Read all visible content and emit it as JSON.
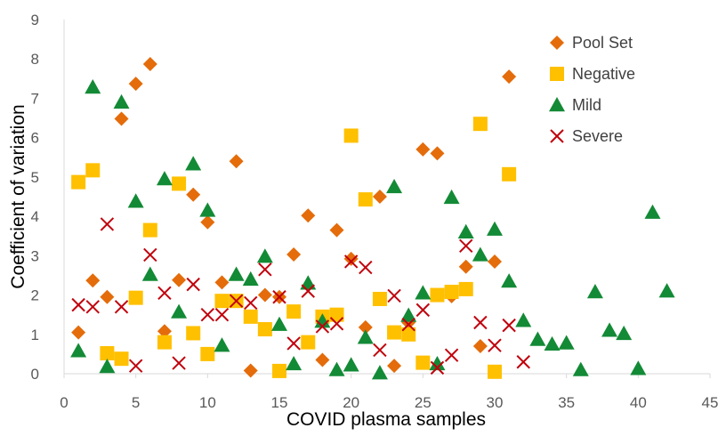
{
  "chart_data": {
    "type": "scatter",
    "xlabel": "COVID plasma samples",
    "ylabel": "Coefficient of variation",
    "xlim": [
      0,
      45
    ],
    "ylim": [
      0,
      9
    ],
    "x_ticks": [
      0,
      5,
      10,
      15,
      20,
      25,
      30,
      35,
      40,
      45
    ],
    "y_ticks": [
      0,
      1,
      2,
      3,
      4,
      5,
      6,
      7,
      8,
      9
    ],
    "grid": false,
    "legend_position": "top-right",
    "series": [
      {
        "name": "Pool Set",
        "marker": "diamond",
        "color": "#E46C0A",
        "points": [
          [
            1,
            1.05
          ],
          [
            2,
            2.37
          ],
          [
            3,
            1.95
          ],
          [
            4,
            6.48
          ],
          [
            5,
            7.37
          ],
          [
            6,
            7.87
          ],
          [
            7,
            1.08
          ],
          [
            8,
            2.38
          ],
          [
            9,
            4.55
          ],
          [
            10,
            3.85
          ],
          [
            11,
            2.32
          ],
          [
            12,
            5.4
          ],
          [
            13,
            0.08
          ],
          [
            14,
            2.0
          ],
          [
            15,
            1.95
          ],
          [
            16,
            3.03
          ],
          [
            17,
            4.02
          ],
          [
            18,
            0.35
          ],
          [
            19,
            3.65
          ],
          [
            20,
            2.92
          ],
          [
            21,
            1.18
          ],
          [
            22,
            4.5
          ],
          [
            23,
            0.2
          ],
          [
            24,
            1.3
          ],
          [
            25,
            5.7
          ],
          [
            26,
            5.6
          ],
          [
            27,
            1.97
          ],
          [
            28,
            2.72
          ],
          [
            29,
            0.7
          ],
          [
            30,
            2.85
          ],
          [
            31,
            7.55
          ]
        ]
      },
      {
        "name": "Negative",
        "marker": "square",
        "color": "#FFC000",
        "points": [
          [
            1,
            4.87
          ],
          [
            2,
            5.17
          ],
          [
            3,
            0.52
          ],
          [
            4,
            0.38
          ],
          [
            5,
            1.93
          ],
          [
            6,
            3.65
          ],
          [
            7,
            0.8
          ],
          [
            8,
            4.83
          ],
          [
            9,
            1.03
          ],
          [
            10,
            0.5
          ],
          [
            11,
            1.85
          ],
          [
            12,
            1.85
          ],
          [
            13,
            1.45
          ],
          [
            14,
            1.13
          ],
          [
            15,
            0.07
          ],
          [
            16,
            1.58
          ],
          [
            17,
            0.8
          ],
          [
            18,
            1.45
          ],
          [
            19,
            1.5
          ],
          [
            20,
            6.05
          ],
          [
            21,
            4.43
          ],
          [
            22,
            1.9
          ],
          [
            23,
            1.05
          ],
          [
            24,
            1.0
          ],
          [
            25,
            0.28
          ],
          [
            26,
            2.0
          ],
          [
            27,
            2.08
          ],
          [
            28,
            2.15
          ],
          [
            29,
            6.35
          ],
          [
            30,
            0.05
          ],
          [
            31,
            5.07
          ]
        ]
      },
      {
        "name": "Mild",
        "marker": "triangle",
        "color": "#138A36",
        "points": [
          [
            1,
            0.58
          ],
          [
            2,
            7.28
          ],
          [
            3,
            0.18
          ],
          [
            4,
            6.9
          ],
          [
            5,
            4.38
          ],
          [
            6,
            2.52
          ],
          [
            7,
            4.95
          ],
          [
            8,
            1.57
          ],
          [
            9,
            5.33
          ],
          [
            10,
            4.15
          ],
          [
            11,
            0.72
          ],
          [
            12,
            2.52
          ],
          [
            13,
            2.4
          ],
          [
            14,
            2.98
          ],
          [
            15,
            1.25
          ],
          [
            16,
            0.25
          ],
          [
            17,
            2.3
          ],
          [
            18,
            1.33
          ],
          [
            19,
            0.1
          ],
          [
            20,
            0.22
          ],
          [
            21,
            0.92
          ],
          [
            22,
            0.02
          ],
          [
            23,
            4.75
          ],
          [
            24,
            1.48
          ],
          [
            25,
            2.05
          ],
          [
            26,
            0.25
          ],
          [
            27,
            4.48
          ],
          [
            28,
            3.6
          ],
          [
            29,
            3.02
          ],
          [
            30,
            3.67
          ],
          [
            31,
            2.35
          ],
          [
            32,
            1.35
          ],
          [
            33,
            0.87
          ],
          [
            34,
            0.75
          ],
          [
            35,
            0.78
          ],
          [
            36,
            0.1
          ],
          [
            37,
            2.08
          ],
          [
            38,
            1.1
          ],
          [
            39,
            1.02
          ],
          [
            40,
            0.13
          ],
          [
            41,
            4.1
          ],
          [
            42,
            2.1
          ]
        ]
      },
      {
        "name": "Severe",
        "marker": "x",
        "color": "#C0000C",
        "points": [
          [
            1,
            1.75
          ],
          [
            2,
            1.7
          ],
          [
            3,
            3.8
          ],
          [
            4,
            1.7
          ],
          [
            5,
            0.2
          ],
          [
            6,
            3.02
          ],
          [
            7,
            2.05
          ],
          [
            8,
            0.27
          ],
          [
            9,
            2.27
          ],
          [
            10,
            1.5
          ],
          [
            11,
            1.5
          ],
          [
            12,
            1.85
          ],
          [
            13,
            1.8
          ],
          [
            14,
            2.65
          ],
          [
            15,
            1.95
          ],
          [
            16,
            0.77
          ],
          [
            17,
            2.1
          ],
          [
            18,
            1.2
          ],
          [
            19,
            1.27
          ],
          [
            20,
            2.85
          ],
          [
            21,
            2.7
          ],
          [
            22,
            0.6
          ],
          [
            23,
            1.98
          ],
          [
            24,
            1.25
          ],
          [
            25,
            1.62
          ],
          [
            26,
            0.15
          ],
          [
            27,
            0.47
          ],
          [
            28,
            3.25
          ],
          [
            29,
            1.3
          ],
          [
            30,
            0.72
          ],
          [
            31,
            1.23
          ],
          [
            32,
            0.3
          ]
        ]
      }
    ]
  }
}
